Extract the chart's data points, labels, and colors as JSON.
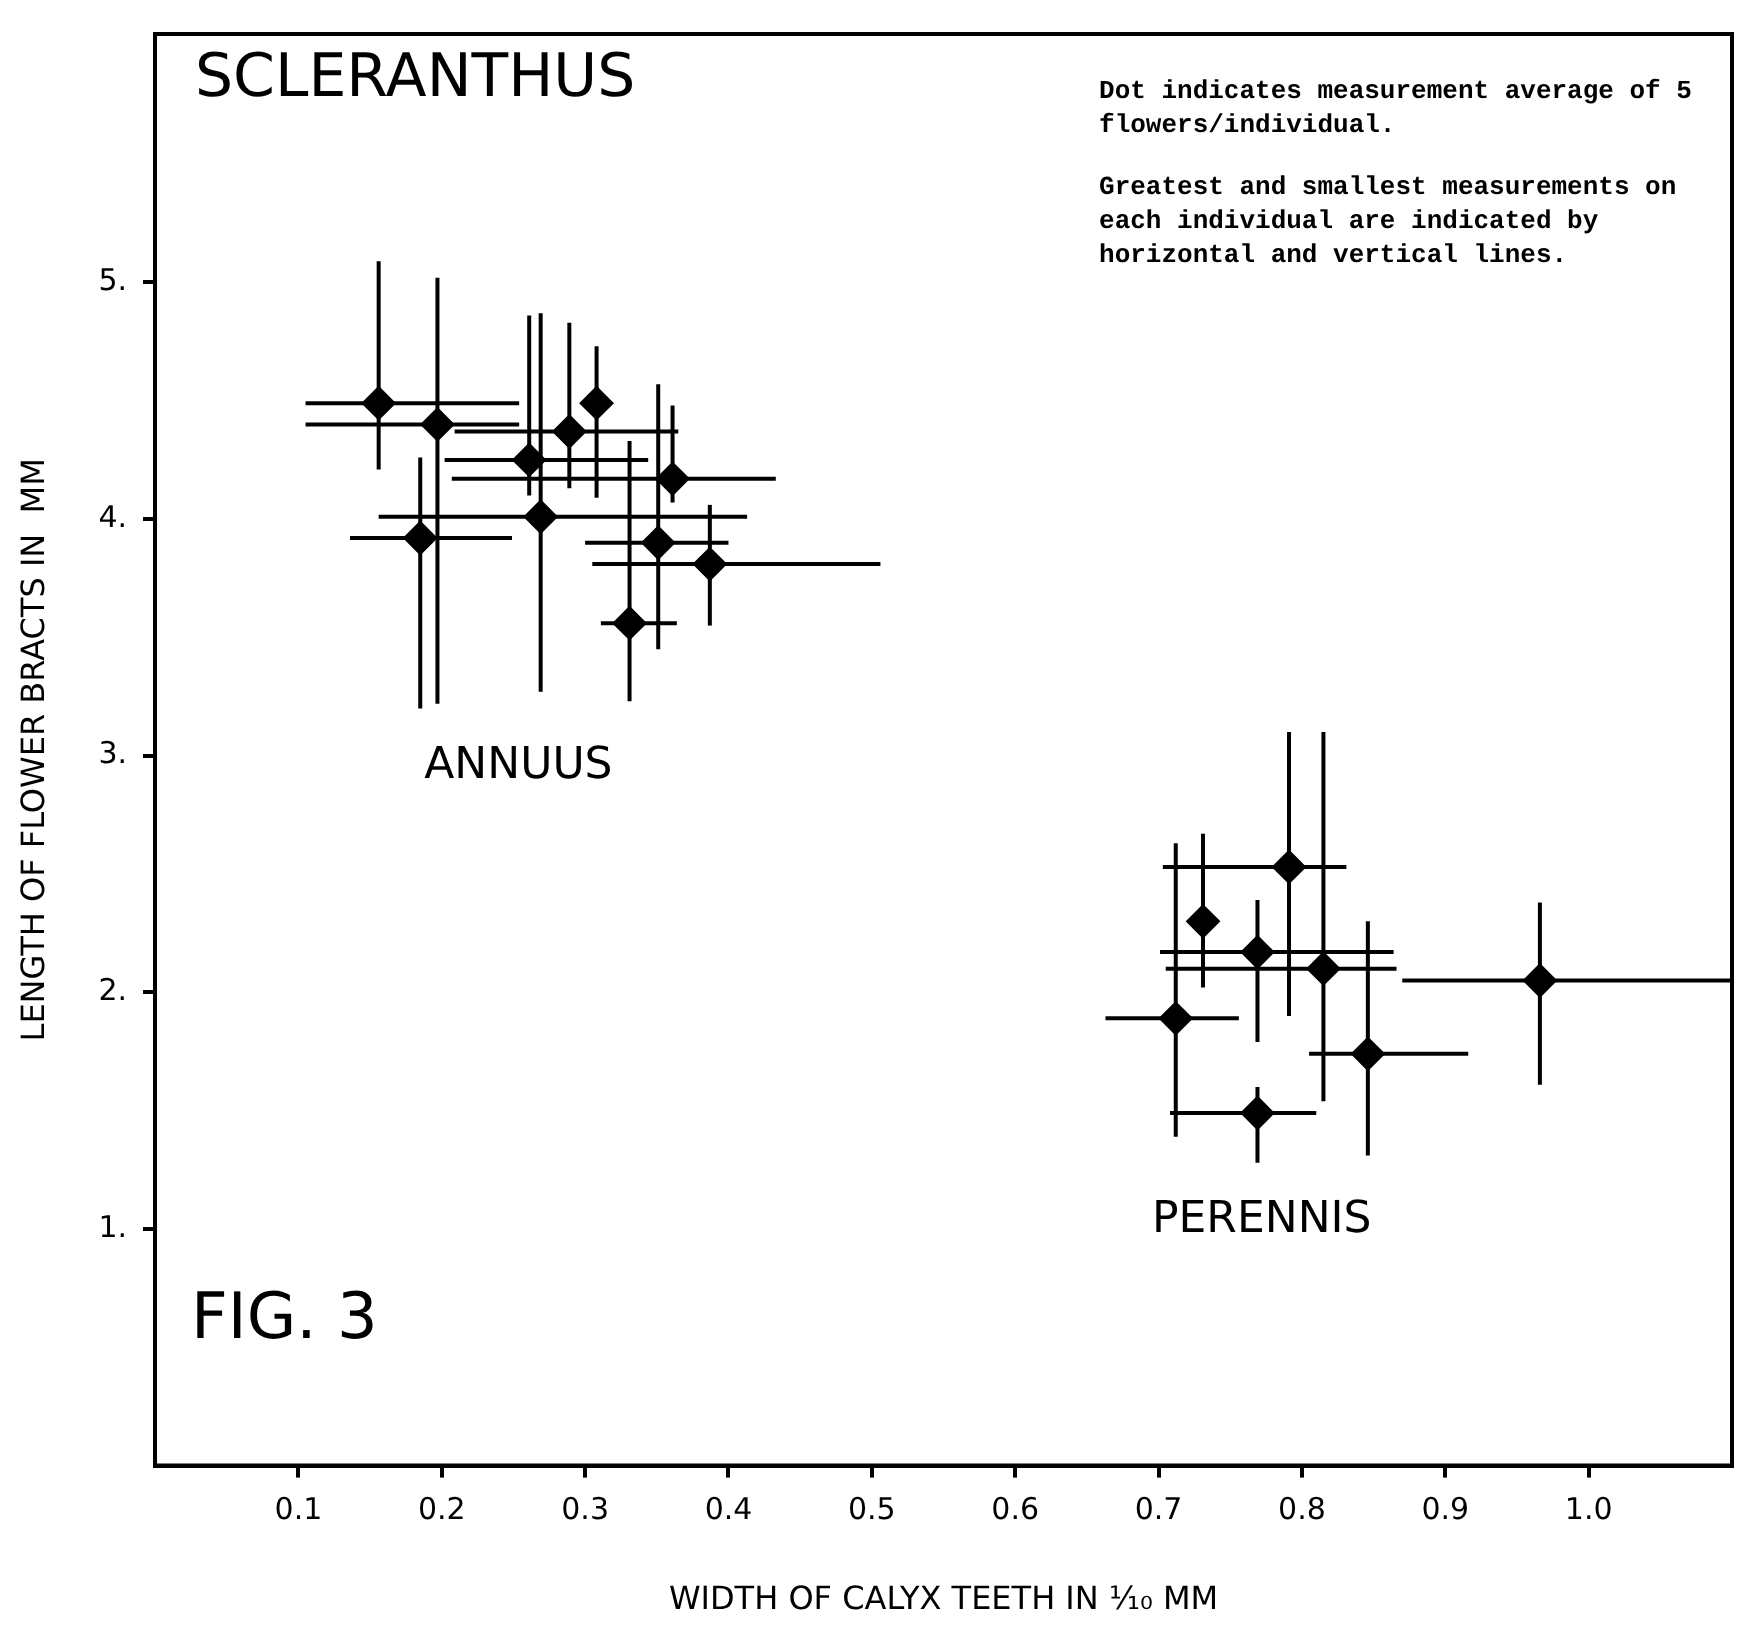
{
  "chart_data": {
    "type": "scatter",
    "title": "SCLERANTHUS",
    "xlabel": "WIDTH OF CALYX TEETH IN ¹⁄₁₀ MM",
    "ylabel": "LENGTH OF FLOWER BRACTS IN  MM",
    "marker": "diamond",
    "annotations": [
      "Dot indicates measurement average of 5 flowers/individual.",
      "Greatest and smallest measurements on each individual are indicated by horizontal and vertical lines.",
      "FIG. 3"
    ],
    "xlim": [
      0,
      1.1
    ],
    "xticks": [
      0.1,
      0.2,
      0.3,
      0.4,
      0.5,
      0.6,
      0.7,
      0.8,
      0.9,
      {
        "value": 1,
        "label": "1.0"
      }
    ],
    "ylim": [
      0,
      6.05
    ],
    "yticks": [
      {
        "value": 1,
        "label": "1."
      },
      {
        "value": 2,
        "label": "2."
      },
      {
        "value": 3,
        "label": "3."
      },
      {
        "value": 4,
        "label": "4."
      },
      {
        "value": 5,
        "label": "5."
      }
    ],
    "series": [
      {
        "name": "ANNUUS",
        "color": "#000000",
        "x": [
          0.156,
          0.197,
          0.261,
          0.289,
          0.269,
          0.308,
          0.361,
          0.351,
          0.387,
          0.331,
          0.185
        ],
        "values": [
          4.49,
          4.4,
          4.25,
          4.37,
          4.01,
          4.49,
          4.17,
          3.9,
          3.81,
          3.56,
          3.92
        ],
        "xerrors": [
          [
            0.105,
            0.254
          ],
          [
            0.105,
            0.254
          ],
          [
            0.202,
            0.344
          ],
          [
            0.209,
            0.365
          ],
          [
            0.156,
            0.413
          ],
          null,
          [
            0.207,
            0.433
          ],
          [
            0.3,
            0.4
          ],
          [
            0.305,
            0.506
          ],
          [
            0.311,
            0.364
          ],
          [
            0.136,
            0.249
          ]
        ],
        "errors": [
          [
            4.21,
            5.09
          ],
          [
            3.22,
            5.02
          ],
          [
            4.1,
            4.86
          ],
          [
            4.13,
            4.83
          ],
          [
            3.27,
            4.87
          ],
          [
            4.09,
            4.73
          ],
          [
            4.07,
            4.48
          ],
          [
            3.45,
            4.57
          ],
          [
            3.55,
            4.06
          ],
          [
            3.23,
            4.33
          ],
          [
            3.2,
            4.26
          ]
        ]
      },
      {
        "name": "PERENNIS",
        "color": "#000000",
        "x": [
          0.791,
          0.731,
          0.769,
          0.815,
          0.712,
          0.846,
          0.769,
          0.966
        ],
        "values": [
          2.53,
          2.3,
          2.17,
          2.1,
          1.89,
          1.74,
          1.49,
          2.05
        ],
        "xerrors": [
          [
            0.703,
            0.831
          ],
          null,
          [
            0.701,
            0.864
          ],
          [
            0.705,
            0.866
          ],
          [
            0.663,
            0.756
          ],
          [
            0.805,
            0.916
          ],
          [
            0.708,
            0.81
          ],
          [
            0.87,
            1.1
          ]
        ],
        "errors": [
          [
            1.9,
            3.1
          ],
          [
            2.02,
            2.67
          ],
          [
            1.79,
            2.39
          ],
          [
            1.54,
            3.1
          ],
          [
            1.39,
            2.63
          ],
          [
            1.31,
            2.3
          ],
          [
            1.28,
            1.6
          ],
          [
            1.61,
            2.38
          ]
        ]
      }
    ]
  }
}
